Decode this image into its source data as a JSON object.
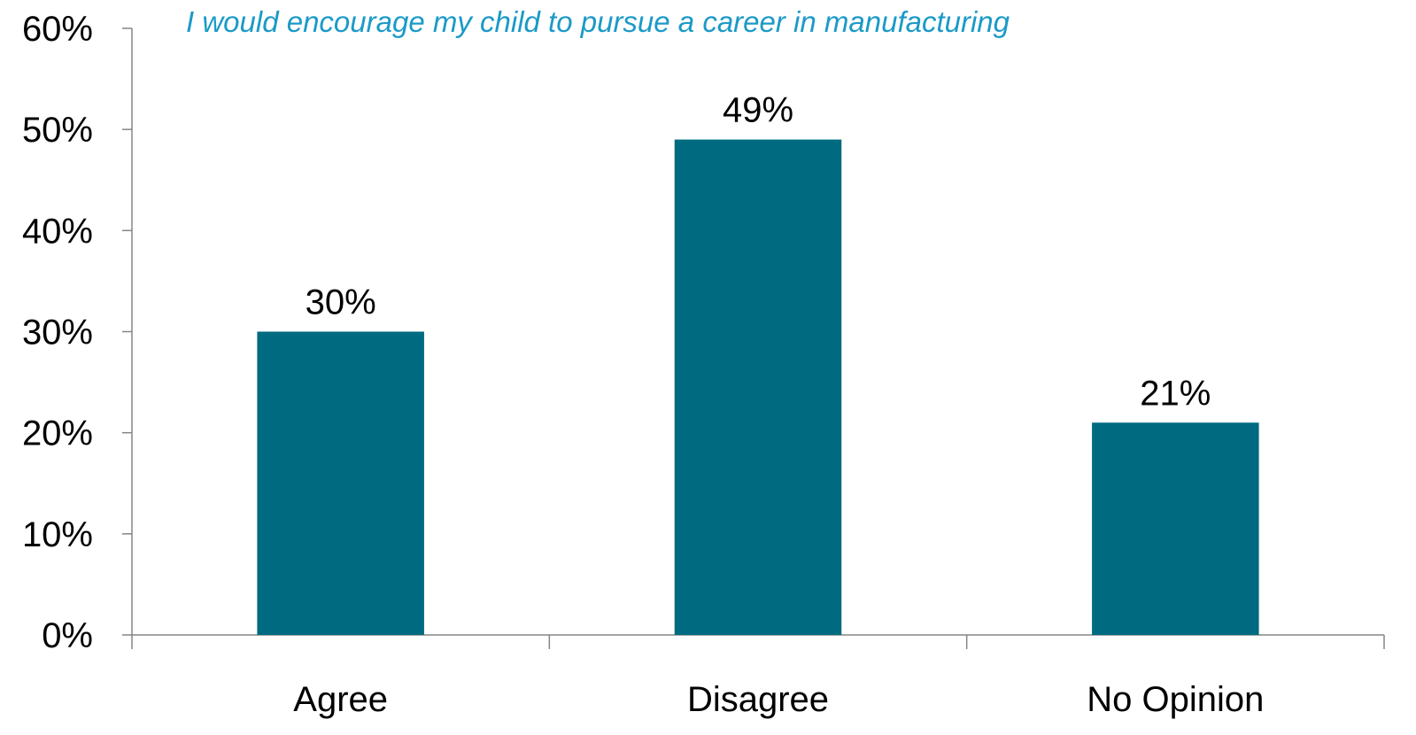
{
  "chart_data": {
    "type": "bar",
    "title": "I would encourage my child to pursue a career in manufacturing",
    "categories": [
      "Agree",
      "Disagree",
      "No Opinion"
    ],
    "values": [
      30,
      49,
      21
    ],
    "data_labels": [
      "30%",
      "49%",
      "21%"
    ],
    "ylim": [
      0,
      60
    ],
    "yticks": [
      0,
      10,
      20,
      30,
      40,
      50,
      60
    ],
    "ytick_labels": [
      "0%",
      "10%",
      "20%",
      "30%",
      "40%",
      "50%",
      "60%"
    ],
    "xlabel": "",
    "ylabel": "",
    "grid": false,
    "legend": "none",
    "colors": {
      "bar": "#006B80",
      "title": "#1B9AC7",
      "axis": "#868686"
    }
  }
}
